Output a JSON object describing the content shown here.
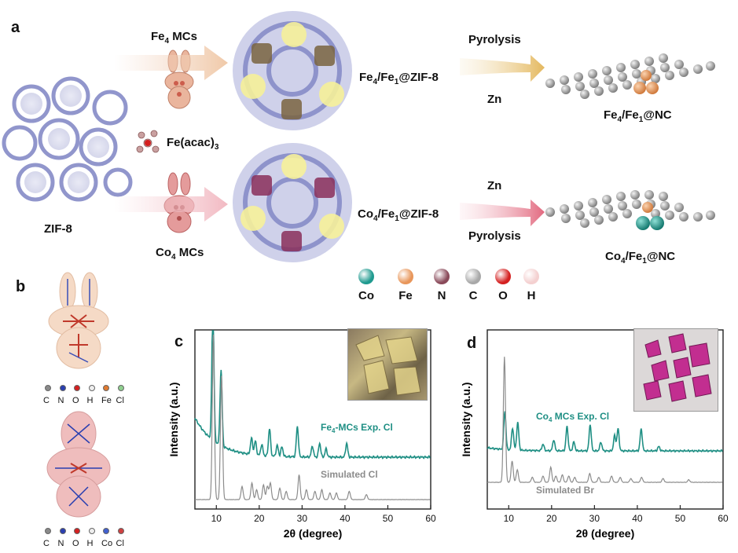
{
  "panels": {
    "a": "a",
    "b": "b",
    "c": "c",
    "d": "d"
  },
  "scheme": {
    "zif8": "ZIF-8",
    "fe4_mcs": [
      "Fe",
      "4",
      " MCs"
    ],
    "co4_mcs": [
      "Co",
      "4",
      " MCs"
    ],
    "feacac": [
      "Fe(acac)",
      "3",
      ""
    ],
    "fe4_zif": [
      "Fe",
      "4",
      "/Fe",
      "1",
      "@ZIF-8"
    ],
    "co4_zif": [
      "Co",
      "4",
      "/Fe",
      "1",
      "@ZIF-8"
    ],
    "fe4_nc": [
      "Fe",
      "4",
      "/Fe",
      "1",
      "@NC"
    ],
    "co4_nc": [
      "Co",
      "4",
      "/Fe",
      "1",
      "@NC"
    ],
    "pyrolysis_top": "Pyrolysis",
    "zn_top": "Zn",
    "zn_bottom": "Zn",
    "pyrolysis_bottom": "Pyrolysis"
  },
  "element_legend": [
    {
      "label": "Co",
      "color": "#1f9a8f"
    },
    {
      "label": "Fe",
      "color": "#e8965a"
    },
    {
      "label": "N",
      "color": "#8a4a5a"
    },
    {
      "label": "C",
      "color": "#a8a8a8"
    },
    {
      "label": "O",
      "color": "#d42020"
    },
    {
      "label": "H",
      "color": "#f4d0d0"
    }
  ],
  "panel_b": {
    "legend_top": [
      "C",
      "N",
      "O",
      "H",
      "Fe",
      "Cl"
    ],
    "legend_top_colors": [
      "#8a8a8a",
      "#2a3fb0",
      "#d42020",
      "#eeeeee",
      "#e07a30",
      "#8fcf8f"
    ],
    "legend_bottom": [
      "C",
      "N",
      "O",
      "H",
      "Co",
      "Cl"
    ],
    "legend_bottom_colors": [
      "#8a8a8a",
      "#2a3fb0",
      "#d42020",
      "#eeeeee",
      "#4060d0",
      "#d04040"
    ]
  },
  "chart_data": [
    {
      "type": "line",
      "panel": "c",
      "xlabel": "2θ (degree)",
      "ylabel": "Intensity (a.u.)",
      "xlim": [
        5,
        60
      ],
      "xticks": [
        10,
        20,
        30,
        40,
        50,
        60
      ],
      "series": [
        {
          "name": "Fe4-MCs Exp. Cl",
          "label_parts": [
            "Fe",
            "4",
            "-MCs Exp. Cl"
          ],
          "color": "#1f8f84",
          "baseline_note": "decaying background",
          "peaks": [
            {
              "x": 9.2,
              "h": 1.0
            },
            {
              "x": 11.1,
              "h": 0.55
            },
            {
              "x": 18.2,
              "h": 0.12
            },
            {
              "x": 19.1,
              "h": 0.1
            },
            {
              "x": 20.6,
              "h": 0.08
            },
            {
              "x": 22.4,
              "h": 0.2
            },
            {
              "x": 24.2,
              "h": 0.08
            },
            {
              "x": 25.3,
              "h": 0.07
            },
            {
              "x": 28.9,
              "h": 0.22
            },
            {
              "x": 32.4,
              "h": 0.08
            },
            {
              "x": 34.1,
              "h": 0.1
            },
            {
              "x": 35.6,
              "h": 0.06
            },
            {
              "x": 40.4,
              "h": 0.1
            }
          ]
        },
        {
          "name": "Simulated Cl",
          "label_parts": [
            "Simulated Cl",
            "",
            ""
          ],
          "color": "#8c8c8c",
          "peaks": [
            {
              "x": 9.3,
              "h": 1.0
            },
            {
              "x": 11.2,
              "h": 0.75
            },
            {
              "x": 16.0,
              "h": 0.08
            },
            {
              "x": 18.3,
              "h": 0.1
            },
            {
              "x": 19.4,
              "h": 0.06
            },
            {
              "x": 21.0,
              "h": 0.09
            },
            {
              "x": 21.9,
              "h": 0.08
            },
            {
              "x": 22.6,
              "h": 0.1
            },
            {
              "x": 24.8,
              "h": 0.07
            },
            {
              "x": 26.3,
              "h": 0.05
            },
            {
              "x": 29.3,
              "h": 0.15
            },
            {
              "x": 31.0,
              "h": 0.06
            },
            {
              "x": 33.0,
              "h": 0.05
            },
            {
              "x": 34.6,
              "h": 0.06
            },
            {
              "x": 36.5,
              "h": 0.04
            },
            {
              "x": 38.0,
              "h": 0.04
            },
            {
              "x": 41.0,
              "h": 0.05
            },
            {
              "x": 45.0,
              "h": 0.03
            }
          ]
        }
      ]
    },
    {
      "type": "line",
      "panel": "d",
      "xlabel": "2θ (degree)",
      "ylabel": "Intensity (a.u.)",
      "xlim": [
        5,
        60
      ],
      "xticks": [
        10,
        20,
        30,
        40,
        50,
        60
      ],
      "series": [
        {
          "name": "Co4 MCs Exp. Cl",
          "label_parts": [
            "Co",
            "4",
            " MCs Exp. Cl"
          ],
          "color": "#1f8f84",
          "peaks": [
            {
              "x": 9.1,
              "h": 0.35
            },
            {
              "x": 10.9,
              "h": 0.2
            },
            {
              "x": 12.1,
              "h": 0.25
            },
            {
              "x": 18.0,
              "h": 0.06
            },
            {
              "x": 20.5,
              "h": 0.1
            },
            {
              "x": 23.6,
              "h": 0.22
            },
            {
              "x": 25.2,
              "h": 0.08
            },
            {
              "x": 29.0,
              "h": 0.24
            },
            {
              "x": 31.5,
              "h": 0.08
            },
            {
              "x": 34.7,
              "h": 0.14
            },
            {
              "x": 35.5,
              "h": 0.2
            },
            {
              "x": 40.9,
              "h": 0.2
            },
            {
              "x": 45.0,
              "h": 0.04
            }
          ]
        },
        {
          "name": "Simulated Br",
          "label_parts": [
            "Simulated Br",
            "",
            ""
          ],
          "color": "#8c8c8c",
          "peaks": [
            {
              "x": 9.0,
              "h": 1.0
            },
            {
              "x": 10.8,
              "h": 0.17
            },
            {
              "x": 12.0,
              "h": 0.1
            },
            {
              "x": 15.5,
              "h": 0.04
            },
            {
              "x": 18.0,
              "h": 0.05
            },
            {
              "x": 19.8,
              "h": 0.12
            },
            {
              "x": 21.0,
              "h": 0.05
            },
            {
              "x": 22.5,
              "h": 0.06
            },
            {
              "x": 24.0,
              "h": 0.05
            },
            {
              "x": 25.4,
              "h": 0.04
            },
            {
              "x": 28.9,
              "h": 0.07
            },
            {
              "x": 31.0,
              "h": 0.04
            },
            {
              "x": 34.0,
              "h": 0.05
            },
            {
              "x": 36.0,
              "h": 0.04
            },
            {
              "x": 38.5,
              "h": 0.03
            },
            {
              "x": 41.0,
              "h": 0.04
            },
            {
              "x": 46.0,
              "h": 0.03
            },
            {
              "x": 52.0,
              "h": 0.02
            }
          ]
        }
      ]
    }
  ]
}
